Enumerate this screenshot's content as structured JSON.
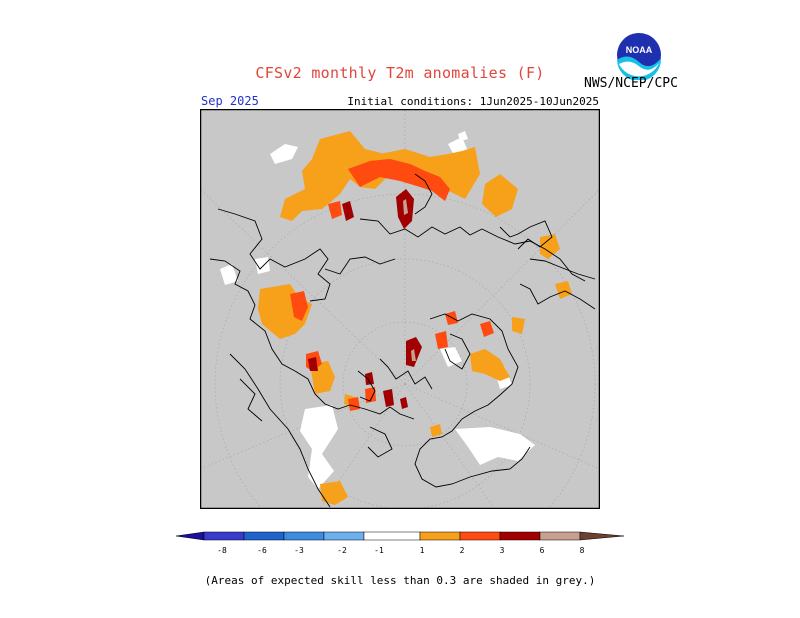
{
  "header": {
    "title": "CFSv2 monthly T2m anomalies (F)",
    "agency": "NWS/NCEP/CPC",
    "logo_text": "NOAA",
    "valid_month": "Sep 2025",
    "initial_conditions": "Initial conditions: 1Jun2025-10Jun2025"
  },
  "map": {
    "projection": "north polar stereographic",
    "background_color": "#c8c8c8",
    "low_skill_note": "(Areas of expected skill less than 0.3 are shaded in grey.)",
    "regions": [
      {
        "area": "northern Siberia / Russian Arctic",
        "category": "1 to 2"
      },
      {
        "area": "Taymyr / Kara Sea coast",
        "category": "2 to 3"
      },
      {
        "area": "Novaya Zemlya",
        "category": "3 to 6"
      },
      {
        "area": "Scandinavia",
        "category": "1 to 2"
      },
      {
        "area": "Mediterranean / southern Europe",
        "category": "1 to 3"
      },
      {
        "area": "Hudson Bay region",
        "category": "1 to 2"
      },
      {
        "area": "Canadian Arctic Archipelago",
        "category": "2 to 6"
      },
      {
        "area": "Alaska / Yukon",
        "category": "1 to 3"
      },
      {
        "area": "western Greenland coast",
        "category": "2 to 3"
      },
      {
        "area": "East Asia / Japan",
        "category": "1 to 2"
      }
    ]
  },
  "colorbar": {
    "labels": [
      "-8",
      "-6",
      "-3",
      "-2",
      "-1",
      "1",
      "2",
      "3",
      "6",
      "8"
    ],
    "colors": {
      "neg_lt8": "#1a10a0",
      "neg_8_6": "#3a3acc",
      "neg_6_3": "#1e64cc",
      "neg_3_2": "#3c8ce0",
      "neg_2_1": "#6cb0f0",
      "neutral": "#ffffff",
      "pos_1_2": "#f7a01a",
      "pos_2_3": "#ff4a10",
      "pos_3_6": "#a00000",
      "pos_6_8": "#c8a090",
      "pos_gt8": "#6e4030"
    }
  }
}
